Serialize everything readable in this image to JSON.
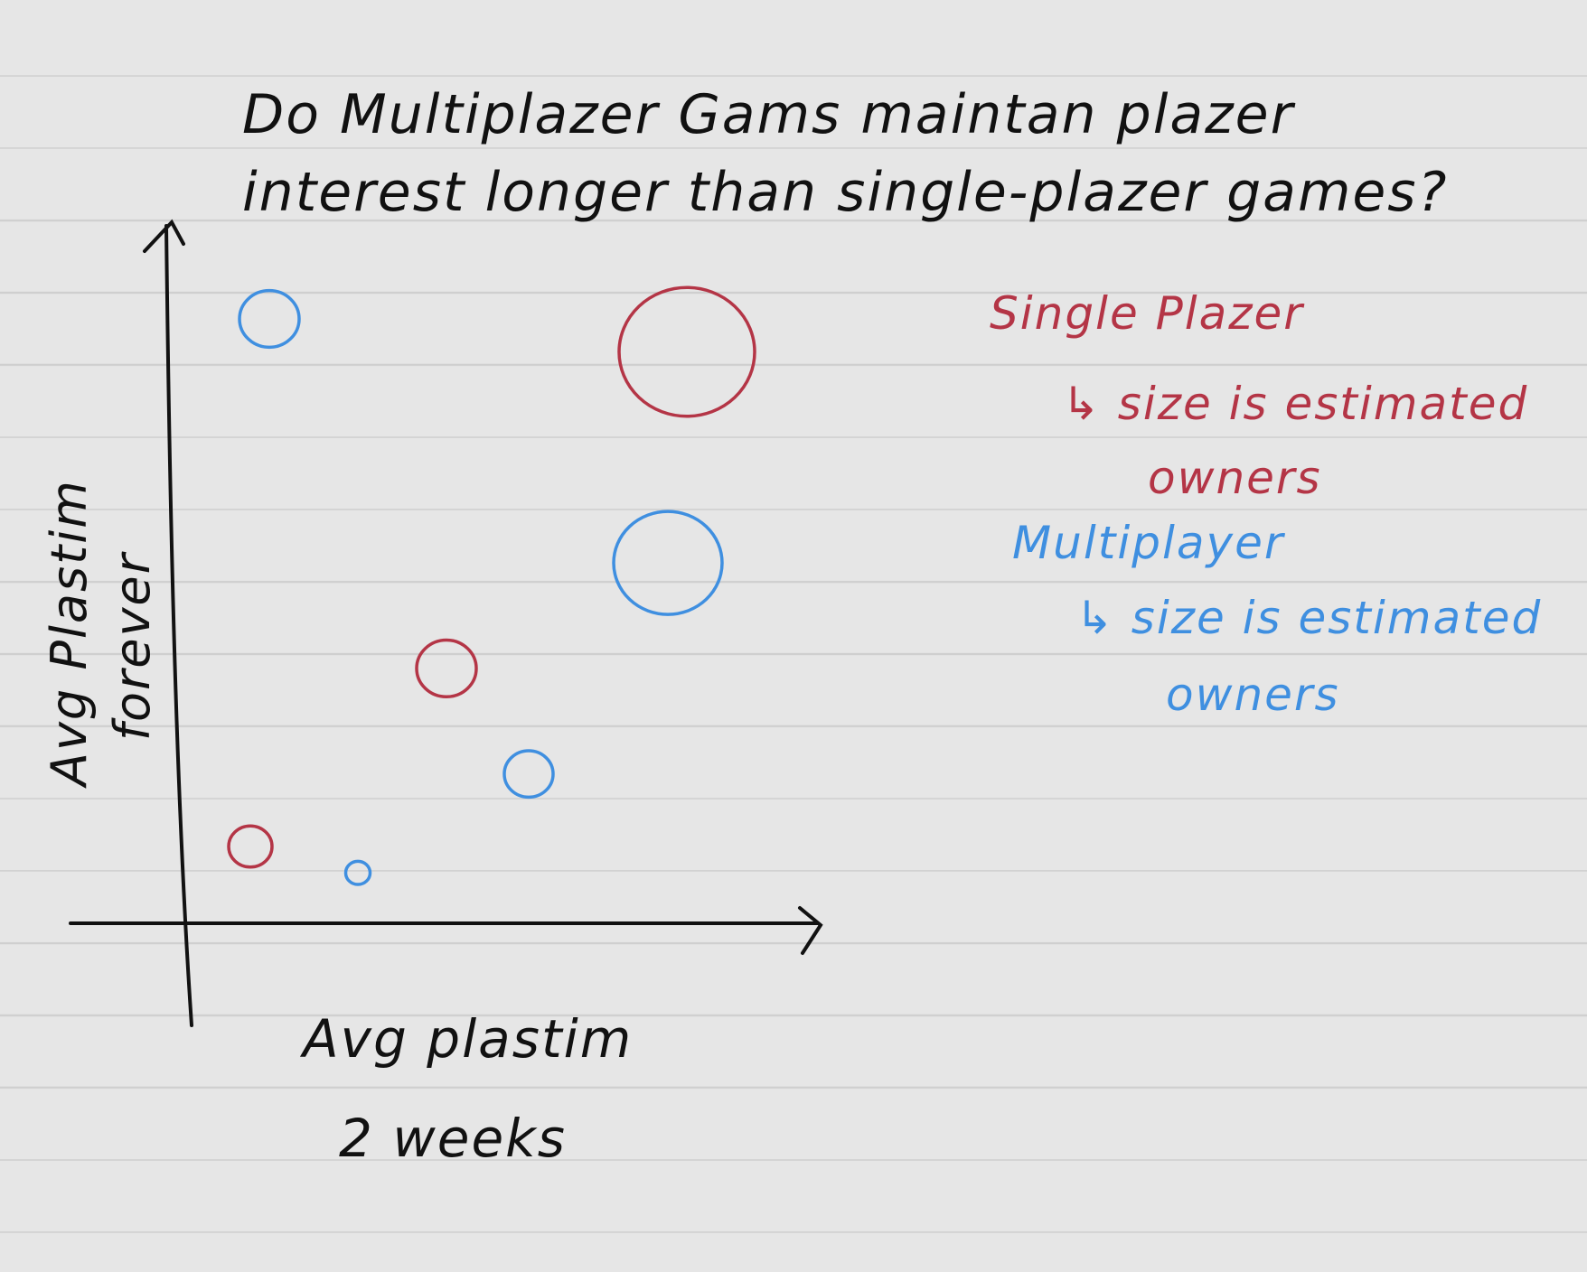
{
  "chart_data": {
    "type": "scatter",
    "title": "Do Multiplazer Gams maintan plazer",
    "subtitle": "interest longer than single-plazer games?",
    "xlabel": [
      "Avg plastim",
      "2 weeks"
    ],
    "ylabel": [
      "Avg Plastim",
      "forever"
    ],
    "grid": false,
    "legend_placement": "right",
    "xlim": [
      0,
      10
    ],
    "ylim": [
      0,
      10
    ],
    "series": [
      {
        "name": "Single Plazer",
        "note": "size is estimated",
        "note2": "owners",
        "color": "#b43546",
        "points": [
          {
            "x": 8.0,
            "y": 8.5,
            "size": 5.0
          },
          {
            "x": 4.2,
            "y": 3.7,
            "size": 2.2
          },
          {
            "x": 1.1,
            "y": 1.0,
            "size": 1.6
          }
        ]
      },
      {
        "name": "Multiplayer",
        "note": "size is estimated",
        "note2": "owners",
        "color": "#3f8fe0",
        "points": [
          {
            "x": 1.4,
            "y": 9.0,
            "size": 2.2
          },
          {
            "x": 7.7,
            "y": 5.3,
            "size": 4.0
          },
          {
            "x": 5.5,
            "y": 2.1,
            "size": 1.8
          },
          {
            "x": 2.8,
            "y": 0.6,
            "size": 0.9
          }
        ]
      }
    ]
  }
}
